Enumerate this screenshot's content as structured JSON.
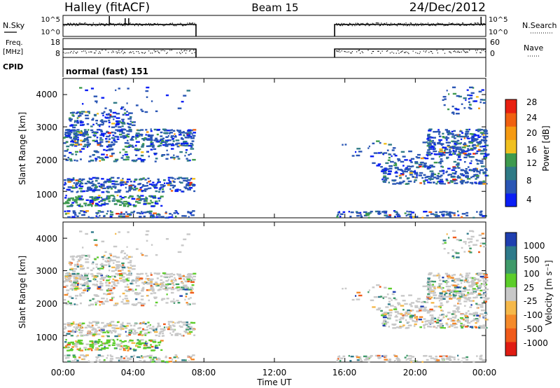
{
  "header": {
    "station": "Halley (fitACF)",
    "beam": "Beam 15",
    "date": "24/Dec/2012"
  },
  "top_panels": {
    "nsky_label": "N.Sky",
    "nsky_ticks": [
      "10^5",
      "10^0"
    ],
    "nsearch_label": "N.Search",
    "nsearch_ticks": [
      "10^5",
      "10^0"
    ],
    "freq_label_1": "Freq.",
    "freq_label_2": "[MHz]",
    "freq_ticks": [
      "18",
      "8"
    ],
    "nave_label": "Nave",
    "nave_ticks": [
      "60",
      "0"
    ],
    "cpid_label": "CPID",
    "cpid_value": "normal (fast) 151"
  },
  "chart_data": [
    {
      "type": "heatmap",
      "quantity": "Power",
      "ylabel": "Slant Range [km]",
      "yticks": [
        "1000",
        "2000",
        "3000",
        "4000"
      ],
      "ylim": [
        180,
        4500
      ],
      "colorbar_label": "Power [dB]",
      "colorbar_ticks": [
        "4",
        "8",
        "12",
        "16",
        "20",
        "24",
        "28"
      ],
      "colors": [
        "#0a1ef5",
        "#2a56b4",
        "#2f7a86",
        "#3e9a4e",
        "#f0c020",
        "#f59a12",
        "#f06010",
        "#e82010"
      ],
      "data_windows_ut": [
        [
          0.0,
          7.5
        ],
        [
          15.5,
          24.0
        ]
      ]
    },
    {
      "type": "heatmap",
      "quantity": "Velocity",
      "ylabel": "Slant Range [km]",
      "yticks": [
        "1000",
        "2000",
        "3000",
        "4000"
      ],
      "ylim": [
        180,
        4500
      ],
      "xlabel": "Time UT",
      "xticks": [
        "00:00",
        "04:00",
        "08:00",
        "12:00",
        "16:00",
        "20:00",
        "00:00"
      ],
      "colorbar_label": "Velocity [m s⁻¹]",
      "colorbar_ticks": [
        "1000",
        "500",
        "100",
        "25",
        "-25",
        "-100",
        "-500",
        "-1000"
      ],
      "colors": [
        "#1f3fb0",
        "#2e7a8a",
        "#3f9a6a",
        "#5ccd2a",
        "#c8c8c8",
        "#f5b84a",
        "#f58a2a",
        "#f05a1a",
        "#e01c12"
      ],
      "data_windows_ut": [
        [
          0.0,
          7.5
        ],
        [
          15.5,
          24.0
        ]
      ]
    }
  ]
}
